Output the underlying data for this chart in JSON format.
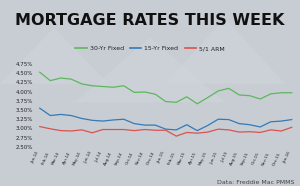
{
  "title": "MORTGAGE RATES THIS WEEK",
  "title_fontsize": 11.5,
  "title_color": "#111111",
  "background_color": "#c8cdd4",
  "ylabel_ticks": [
    "2.50%",
    "2.75%",
    "3.00%",
    "3.25%",
    "3.50%",
    "3.75%",
    "4.00%",
    "4.25%",
    "4.50%",
    "4.75%"
  ],
  "ylim": [
    2.42,
    4.95
  ],
  "yticks": [
    2.5,
    2.75,
    3.0,
    3.25,
    3.5,
    3.75,
    4.0,
    4.25,
    4.5,
    4.75
  ],
  "x_labels": [
    "Jan-14",
    "Feb-14",
    "Mar-14",
    "Apr-14",
    "May-14",
    "Jun-14",
    "Jul-14",
    "Aug-14",
    "Sep-14",
    "Oct-14",
    "Nov-14",
    "Dec-14",
    "Jan-15",
    "Feb-15",
    "Mar-15",
    "Apr-15",
    "May-15",
    "Jun-15",
    "Jul-15",
    "Aug-15",
    "Sep-15",
    "Oct-15",
    "Nov-15",
    "Dec-15",
    "Jan-16"
  ],
  "line30": [
    4.53,
    4.3,
    4.37,
    4.34,
    4.21,
    4.16,
    4.14,
    4.12,
    4.16,
    3.98,
    3.99,
    3.93,
    3.73,
    3.71,
    3.86,
    3.67,
    3.84,
    4.02,
    4.09,
    3.91,
    3.89,
    3.8,
    3.94,
    3.97,
    3.97
  ],
  "line15": [
    3.55,
    3.35,
    3.38,
    3.35,
    3.27,
    3.22,
    3.2,
    3.23,
    3.25,
    3.13,
    3.09,
    3.09,
    2.98,
    2.96,
    3.1,
    2.94,
    3.08,
    3.25,
    3.24,
    3.13,
    3.1,
    3.04,
    3.18,
    3.2,
    3.24
  ],
  "line51": [
    3.05,
    2.99,
    2.94,
    2.93,
    2.96,
    2.88,
    2.97,
    2.97,
    2.97,
    2.94,
    2.97,
    2.95,
    2.95,
    2.79,
    2.89,
    2.87,
    2.9,
    2.98,
    2.96,
    2.9,
    2.91,
    2.89,
    2.96,
    2.93,
    3.03
  ],
  "color30": "#5cb85c",
  "color15": "#337ab7",
  "color51": "#d9534f",
  "legend_labels": [
    "30-Yr Fixed",
    "15-Yr Fixed",
    "5/1 ARM"
  ],
  "source_text": "Data: Freddie Mac PMMS",
  "source_fontsize": 4.5,
  "source_color": "#444444"
}
